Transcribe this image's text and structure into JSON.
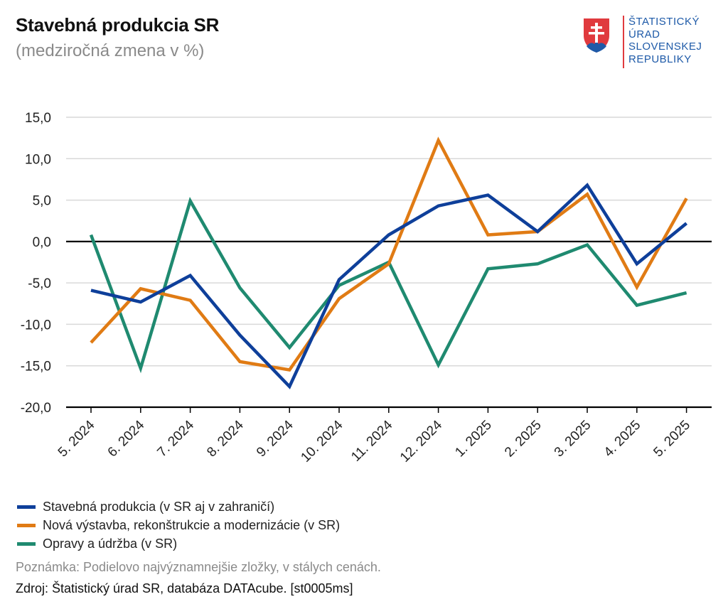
{
  "header": {
    "title": "Stavebná produkcia SR",
    "subtitle": "(medziročná zmena v %)"
  },
  "logo": {
    "lines": [
      "ŠTATISTICKÝ",
      "ÚRAD",
      "SLOVENSKEJ",
      "REPUBLIKY"
    ],
    "icon": "slovak-coat-of-arms-icon",
    "text_color": "#1e5aa8",
    "accent_color": "#e03a3e"
  },
  "chart_data": {
    "type": "line",
    "title": "Stavebná produkcia SR",
    "subtitle": "(medziročná zmena v %)",
    "xlabel": "",
    "ylabel": "",
    "ylim": [
      -20,
      15
    ],
    "yticks": [
      15,
      10,
      5,
      0,
      -5,
      -10,
      -15,
      -20
    ],
    "ytick_labels": [
      "15,0",
      "10,0",
      "5,0",
      "0,0",
      "-5,0",
      "-10,0",
      "-15,0",
      "-20,0"
    ],
    "grid": true,
    "legend_position": "bottom-left",
    "categories": [
      "5. 2024",
      "6. 2024",
      "7. 2024",
      "8. 2024",
      "9. 2024",
      "10. 2024",
      "11. 2024",
      "12. 2024",
      "1. 2025",
      "2. 2025",
      "3. 2025",
      "4. 2025",
      "5. 2025"
    ],
    "series": [
      {
        "name": "Stavebná produkcia (v SR aj v zahraničí)",
        "color": "#0e3f9a",
        "values": [
          -5.9,
          -7.3,
          -4.1,
          -11.3,
          -17.5,
          -4.6,
          0.8,
          4.3,
          5.6,
          1.2,
          6.8,
          -2.7,
          2.2
        ]
      },
      {
        "name": "Nová výstavba, rekonštrukcie a modernizácie (v SR)",
        "color": "#e07b14",
        "values": [
          -12.2,
          -5.7,
          -7.1,
          -14.5,
          -15.5,
          -6.9,
          -2.7,
          12.2,
          0.8,
          1.2,
          5.7,
          -5.5,
          5.2
        ]
      },
      {
        "name": "Opravy a údržba (v SR)",
        "color": "#1f8a70",
        "values": [
          0.8,
          -15.3,
          4.9,
          -5.6,
          -12.8,
          -5.3,
          -2.5,
          -14.9,
          -3.3,
          -2.7,
          -0.4,
          -7.7,
          -6.2
        ]
      }
    ]
  },
  "footer": {
    "note": "Poznámka: Podielovo najvýznamnejšie zložky, v stálych cenách.",
    "source": "Zdroj: Štatistický úrad SR, databáza DATAcube. [st0005ms]"
  }
}
